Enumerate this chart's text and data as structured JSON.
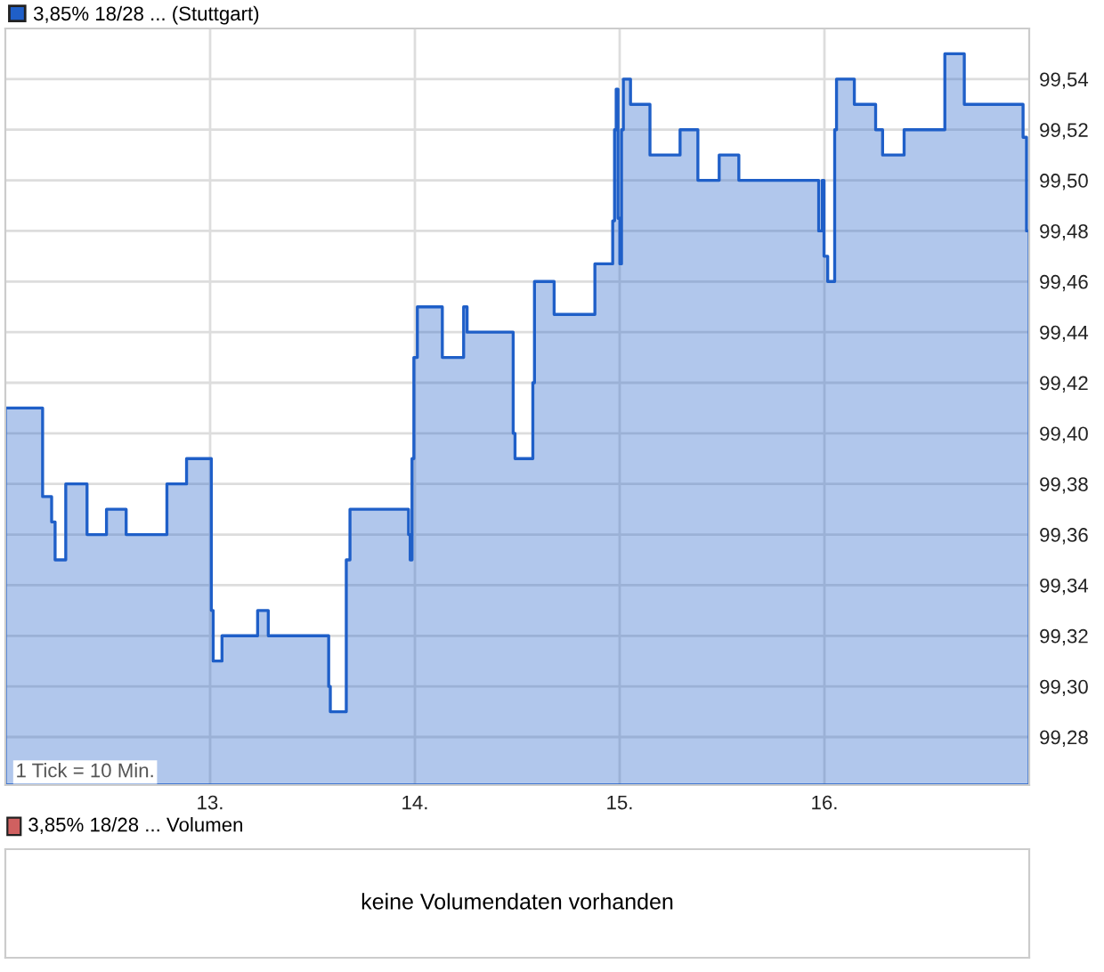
{
  "chart_data": [
    {
      "type": "area",
      "legend": "top left",
      "grid": true,
      "series": [
        {
          "name": "3,85% 18/28 ... (Stuttgart)",
          "color": "#1f5fc8",
          "x": [
            12.0,
            12.182,
            12.226,
            12.243,
            12.295,
            12.399,
            12.494,
            12.59,
            12.789,
            12.885,
            13.006,
            13.015,
            13.058,
            13.232,
            13.284,
            13.579,
            13.587,
            13.665,
            13.683,
            13.969,
            13.977,
            13.986,
            13.995,
            14.012,
            14.134,
            14.238,
            14.255,
            14.48,
            14.489,
            14.576,
            14.584,
            14.68,
            14.879,
            14.966,
            14.975,
            14.983,
            14.992,
            15.001,
            15.009,
            15.018,
            15.053,
            15.148,
            15.295,
            15.382,
            15.486,
            15.582,
            15.972,
            15.989,
            15.998,
            16.016,
            16.05,
            16.059,
            16.146,
            16.25,
            16.284,
            16.389,
            16.588,
            16.683,
            16.97,
            16.987
          ],
          "values": [
            99.41,
            99.375,
            99.365,
            99.35,
            99.38,
            99.36,
            99.37,
            99.36,
            99.38,
            99.39,
            99.33,
            99.31,
            99.32,
            99.33,
            99.32,
            99.3,
            99.29,
            99.35,
            99.37,
            99.36,
            99.35,
            99.39,
            99.43,
            99.45,
            99.43,
            99.45,
            99.44,
            99.4,
            99.39,
            99.42,
            99.46,
            99.447,
            99.467,
            99.484,
            99.52,
            99.536,
            99.485,
            99.467,
            99.52,
            99.54,
            99.53,
            99.51,
            99.52,
            99.5,
            99.51,
            99.5,
            99.48,
            99.5,
            99.47,
            99.46,
            99.52,
            99.54,
            99.53,
            99.52,
            99.51,
            99.52,
            99.55,
            99.53,
            99.517,
            99.48
          ]
        }
      ],
      "xlim": [
        12.0,
        17.0
      ],
      "ylim": [
        99.261,
        99.56
      ],
      "xticks": [
        {
          "value": 13,
          "label": "13."
        },
        {
          "value": 14,
          "label": "14."
        },
        {
          "value": 15,
          "label": "15."
        },
        {
          "value": 16,
          "label": "16."
        }
      ],
      "yticks": [
        {
          "value": 99.28,
          "label": "99,28"
        },
        {
          "value": 99.3,
          "label": "99,30"
        },
        {
          "value": 99.32,
          "label": "99,32"
        },
        {
          "value": 99.34,
          "label": "99,34"
        },
        {
          "value": 99.36,
          "label": "99,36"
        },
        {
          "value": 99.38,
          "label": "99,38"
        },
        {
          "value": 99.4,
          "label": "99,40"
        },
        {
          "value": 99.42,
          "label": "99,42"
        },
        {
          "value": 99.44,
          "label": "99,44"
        },
        {
          "value": 99.46,
          "label": "99,46"
        },
        {
          "value": 99.48,
          "label": "99,48"
        },
        {
          "value": 99.5,
          "label": "99,50"
        },
        {
          "value": 99.52,
          "label": "99,52"
        },
        {
          "value": 99.54,
          "label": "99,54"
        }
      ],
      "annotations": [
        "1 Tick = 10 Min."
      ]
    },
    {
      "type": "other",
      "title": "3,85% 18/28 ... Volumen",
      "annotations": [
        "keine Volumendaten vorhanden"
      ]
    }
  ]
}
